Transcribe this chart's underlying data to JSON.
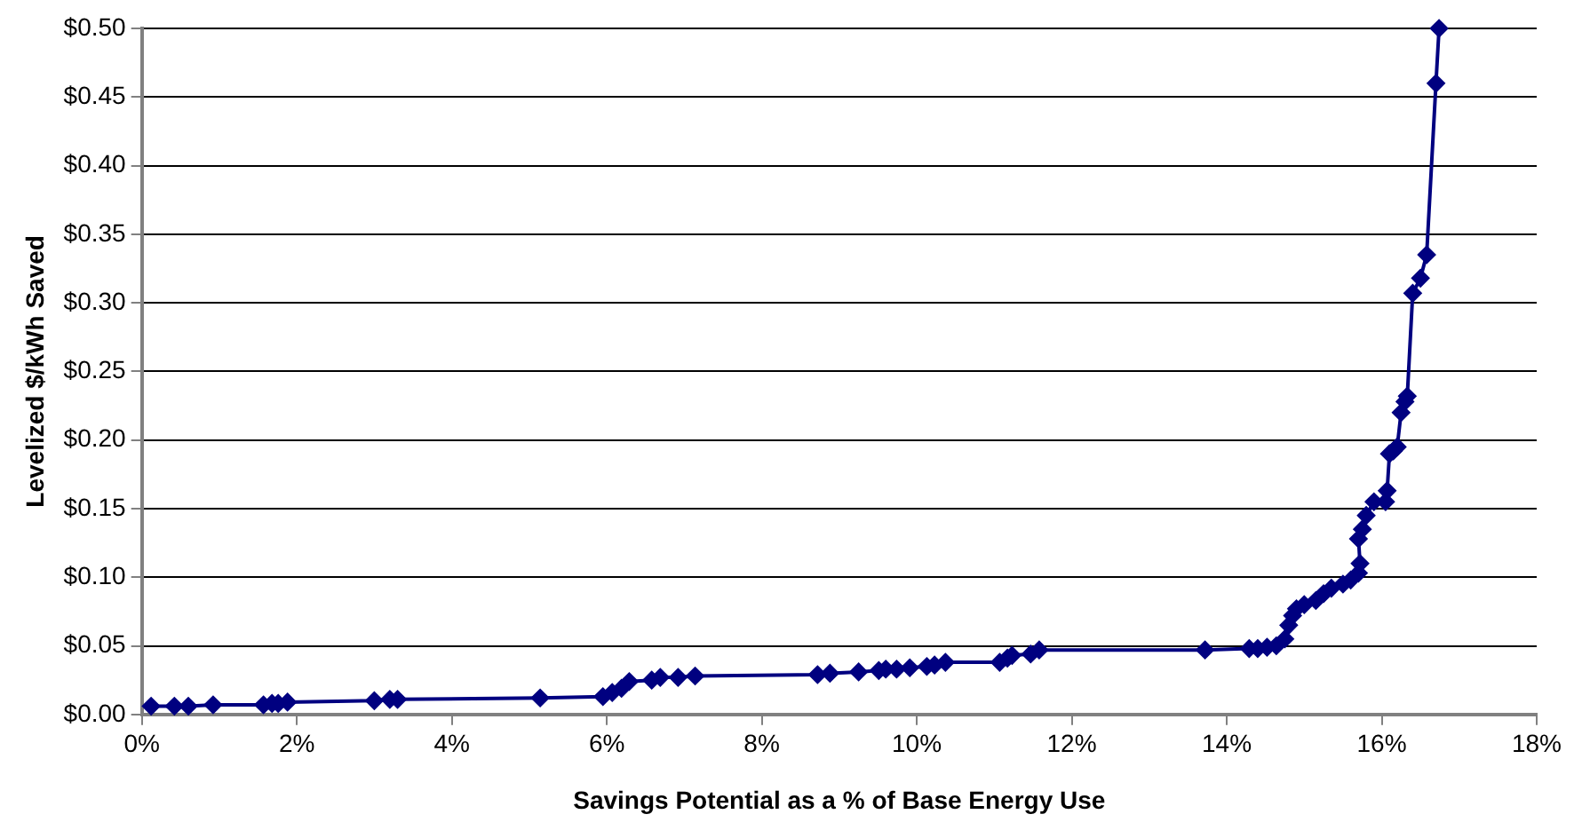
{
  "chart_data": {
    "type": "line",
    "xlabel": "Savings Potential as a % of Base Energy Use",
    "ylabel": "Levelized $/kWh Saved",
    "xlim": [
      0,
      18
    ],
    "xticks": [
      {
        "value": 0,
        "label": "0%"
      },
      {
        "value": 2,
        "label": "2%"
      },
      {
        "value": 4,
        "label": "4%"
      },
      {
        "value": 6,
        "label": "6%"
      },
      {
        "value": 8,
        "label": "8%"
      },
      {
        "value": 10,
        "label": "10%"
      },
      {
        "value": 12,
        "label": "12%"
      },
      {
        "value": 14,
        "label": "14%"
      },
      {
        "value": 16,
        "label": "16%"
      },
      {
        "value": 18,
        "label": "18%"
      }
    ],
    "ylim": [
      0,
      0.5
    ],
    "yticks": [
      {
        "value": 0,
        "label": "$0.00"
      },
      {
        "value": 0.05,
        "label": "$0.05"
      },
      {
        "value": 0.1,
        "label": "$0.10"
      },
      {
        "value": 0.15,
        "label": "$0.15"
      },
      {
        "value": 0.2,
        "label": "$0.20"
      },
      {
        "value": 0.25,
        "label": "$0.25"
      },
      {
        "value": 0.3,
        "label": "$0.30"
      },
      {
        "value": 0.35,
        "label": "$0.35"
      },
      {
        "value": 0.4,
        "label": "$0.40"
      },
      {
        "value": 0.45,
        "label": "$0.45"
      },
      {
        "value": 0.5,
        "label": "$0.50"
      }
    ],
    "grid": "y",
    "legend": false,
    "marker": "diamond",
    "line_style": "solid",
    "series": [
      {
        "color": "#000080",
        "x": [
          0.12,
          0.42,
          0.6,
          0.92,
          1.57,
          1.68,
          1.76,
          1.88,
          3.0,
          3.2,
          3.3,
          5.14,
          5.95,
          6.07,
          6.19,
          6.29,
          6.58,
          6.69,
          6.92,
          7.14,
          8.72,
          8.88,
          9.25,
          9.51,
          9.6,
          9.74,
          9.91,
          10.13,
          10.23,
          10.37,
          11.07,
          11.17,
          11.23,
          11.47,
          11.58,
          13.72,
          14.29,
          14.4,
          14.52,
          14.64,
          14.75,
          14.8,
          14.85,
          14.9,
          15.0,
          15.15,
          15.25,
          15.35,
          15.5,
          15.6,
          15.7,
          15.72,
          15.7,
          15.75,
          15.8,
          15.9,
          16.05,
          16.07,
          16.1,
          16.15,
          16.2,
          16.25,
          16.3,
          16.33,
          16.4,
          16.5,
          16.58,
          16.7,
          16.74
        ],
        "values": [
          0.006,
          0.006,
          0.006,
          0.007,
          0.007,
          0.008,
          0.008,
          0.009,
          0.01,
          0.011,
          0.011,
          0.012,
          0.013,
          0.016,
          0.019,
          0.024,
          0.025,
          0.027,
          0.027,
          0.028,
          0.029,
          0.03,
          0.031,
          0.032,
          0.033,
          0.033,
          0.034,
          0.035,
          0.036,
          0.038,
          0.038,
          0.041,
          0.043,
          0.044,
          0.047,
          0.047,
          0.048,
          0.048,
          0.049,
          0.05,
          0.055,
          0.065,
          0.072,
          0.077,
          0.08,
          0.083,
          0.088,
          0.092,
          0.095,
          0.098,
          0.103,
          0.11,
          0.128,
          0.135,
          0.145,
          0.155,
          0.155,
          0.163,
          0.19,
          0.192,
          0.195,
          0.22,
          0.228,
          0.232,
          0.307,
          0.318,
          0.335,
          0.46,
          0.5
        ]
      }
    ]
  }
}
